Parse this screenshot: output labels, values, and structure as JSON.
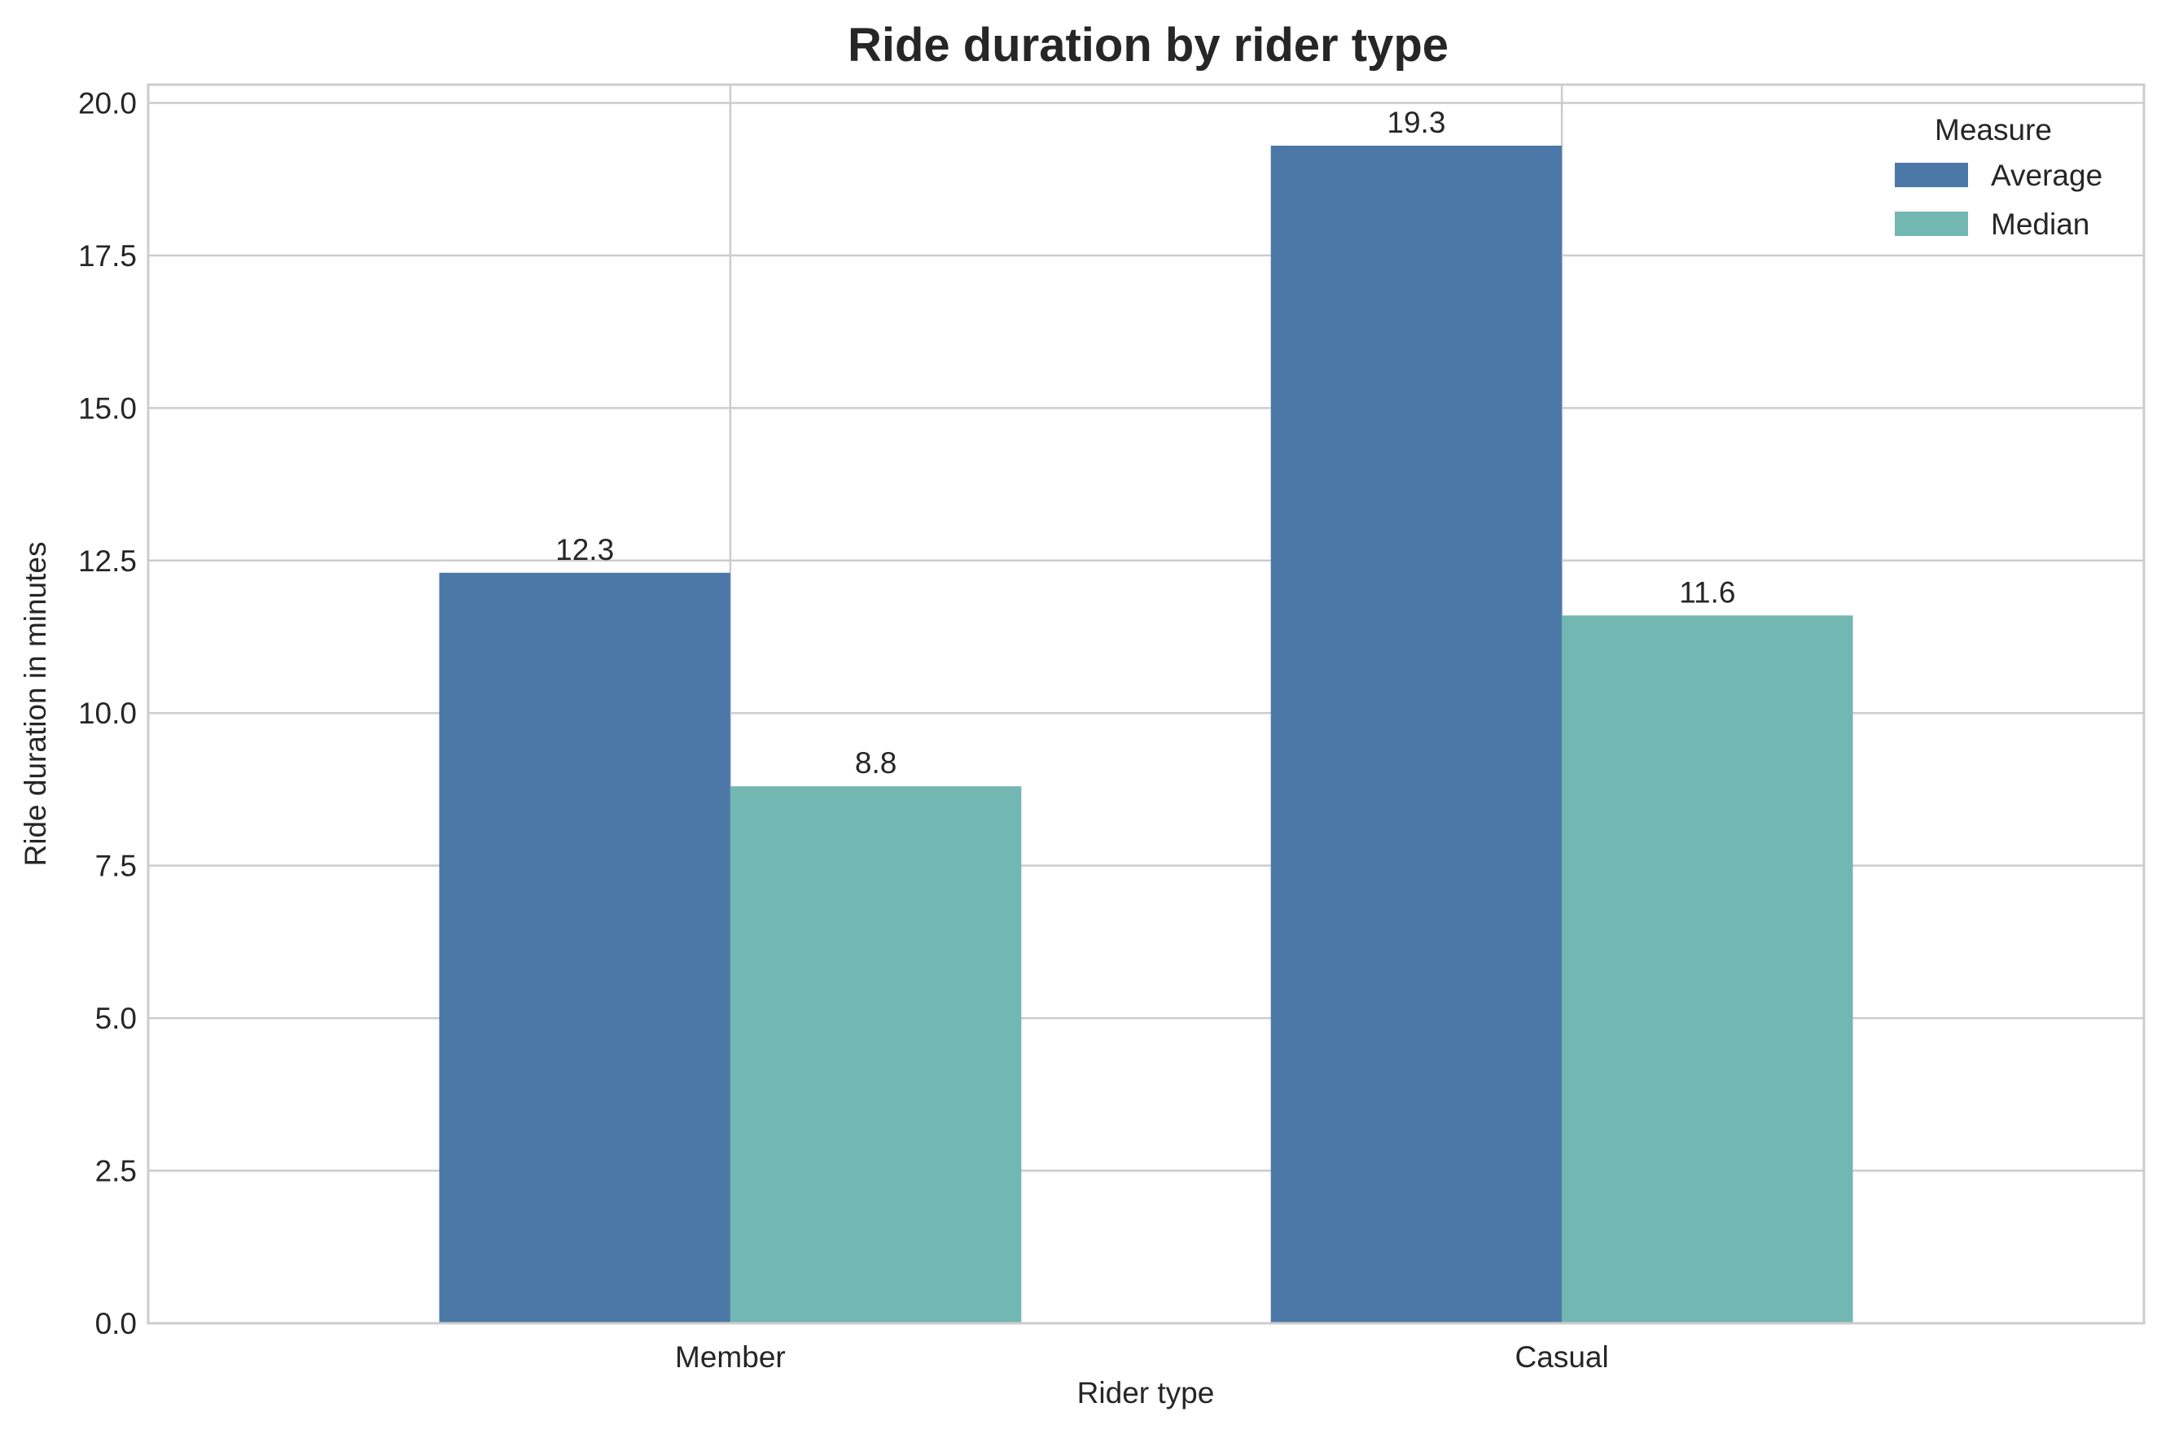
{
  "chart_data": {
    "type": "bar",
    "title": "Ride duration by rider type",
    "xlabel": "Rider type",
    "ylabel": "Ride duration in minutes",
    "categories": [
      "Member",
      "Casual"
    ],
    "series": [
      {
        "name": "Average",
        "values": [
          12.3,
          19.3
        ],
        "labels": [
          "12.3",
          "19.3"
        ],
        "color": "#4c78a8"
      },
      {
        "name": "Median",
        "values": [
          8.8,
          11.6
        ],
        "labels": [
          "8.8",
          "11.6"
        ],
        "color": "#72b7b2"
      }
    ],
    "ylim": [
      0,
      20.3
    ],
    "yticks": [
      "0.0",
      "2.5",
      "5.0",
      "7.5",
      "10.0",
      "12.5",
      "15.0",
      "17.5",
      "20.0"
    ],
    "grid": true,
    "legend": {
      "title": "Measure",
      "placement": "top-right"
    }
  }
}
